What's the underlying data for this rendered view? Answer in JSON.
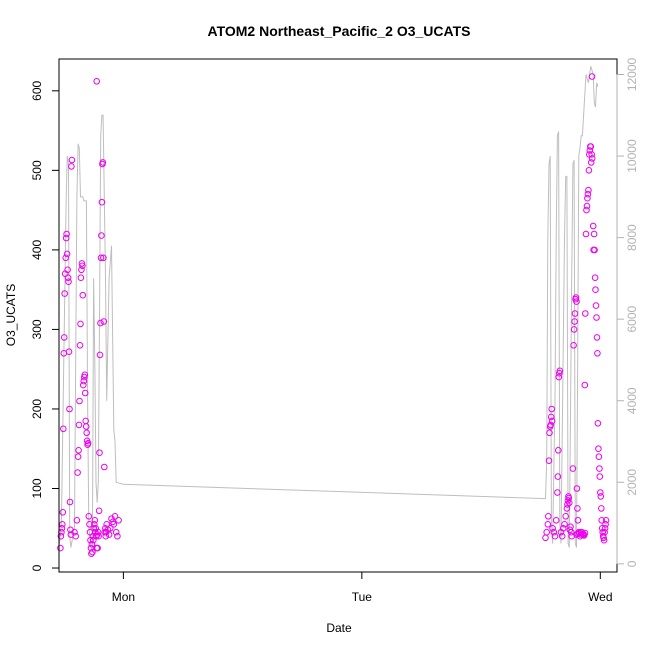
{
  "chart_data": {
    "type": "scatter",
    "title": "ATOM2 Northeast_Pacific_2 O3_UCATS",
    "xlabel": "Date",
    "ylabel": "O3_UCATS",
    "x_ticks": [
      "Mon",
      "Tue",
      "Wed"
    ],
    "y_ticks": [
      0,
      100,
      200,
      300,
      400,
      500,
      600
    ],
    "y2_ticks": [
      0,
      2000,
      4000,
      6000,
      8000,
      10000,
      12000
    ],
    "xlim": [
      -0.27,
      2.07
    ],
    "ylim": [
      -5,
      640
    ],
    "y2lim": [
      -200,
      12380
    ],
    "grid": false,
    "legend": "none",
    "colors": {
      "points": "#ee00ee",
      "altitude_line": "#bebebe",
      "right_axis": "#b3b3b3",
      "axes": "#000000"
    },
    "series": [
      {
        "role": "scatter",
        "axis": "left",
        "points": [
          [
            -0.264,
            25
          ],
          [
            -0.262,
            40
          ],
          [
            -0.26,
            45
          ],
          [
            -0.258,
            50
          ],
          [
            -0.256,
            55
          ],
          [
            -0.254,
            70
          ],
          [
            -0.252,
            175
          ],
          [
            -0.25,
            270
          ],
          [
            -0.248,
            290
          ],
          [
            -0.246,
            345
          ],
          [
            -0.244,
            370
          ],
          [
            -0.242,
            390
          ],
          [
            -0.24,
            415
          ],
          [
            -0.238,
            420
          ],
          [
            -0.236,
            395
          ],
          [
            -0.234,
            375
          ],
          [
            -0.232,
            365
          ],
          [
            -0.23,
            360
          ],
          [
            -0.228,
            272
          ],
          [
            -0.226,
            200
          ],
          [
            -0.224,
            83
          ],
          [
            -0.222,
            48
          ],
          [
            -0.22,
            42
          ],
          [
            -0.218,
            505
          ],
          [
            -0.216,
            513
          ],
          [
            -0.205,
            45
          ],
          [
            -0.2,
            40
          ],
          [
            -0.195,
            60
          ],
          [
            -0.192,
            120
          ],
          [
            -0.19,
            140
          ],
          [
            -0.188,
            148
          ],
          [
            -0.186,
            180
          ],
          [
            -0.184,
            210
          ],
          [
            -0.182,
            280
          ],
          [
            -0.18,
            307
          ],
          [
            -0.178,
            365
          ],
          [
            -0.176,
            375
          ],
          [
            -0.174,
            383
          ],
          [
            -0.172,
            380
          ],
          [
            -0.17,
            343
          ],
          [
            -0.168,
            230
          ],
          [
            -0.166,
            235
          ],
          [
            -0.164,
            240
          ],
          [
            -0.162,
            243
          ],
          [
            -0.16,
            220
          ],
          [
            -0.158,
            185
          ],
          [
            -0.156,
            178
          ],
          [
            -0.154,
            170
          ],
          [
            -0.152,
            160
          ],
          [
            -0.15,
            155
          ],
          [
            -0.148,
            157
          ],
          [
            -0.145,
            65
          ],
          [
            -0.142,
            55
          ],
          [
            -0.14,
            45
          ],
          [
            -0.138,
            35
          ],
          [
            -0.136,
            25
          ],
          [
            -0.134,
            18
          ],
          [
            -0.132,
            30
          ],
          [
            -0.13,
            20
          ],
          [
            -0.128,
            40
          ],
          [
            -0.126,
            35
          ],
          [
            -0.124,
            50
          ],
          [
            -0.122,
            55
          ],
          [
            -0.12,
            60
          ],
          [
            -0.118,
            45
          ],
          [
            -0.116,
            50
          ],
          [
            -0.114,
            40
          ],
          [
            -0.112,
            25
          ],
          [
            -0.11,
            42
          ],
          [
            -0.108,
            25
          ],
          [
            -0.106,
            45
          ],
          [
            -0.104,
            40
          ],
          [
            -0.102,
            72
          ],
          [
            -0.1,
            145
          ],
          [
            -0.098,
            268
          ],
          [
            -0.096,
            308
          ],
          [
            -0.094,
            390
          ],
          [
            -0.092,
            418
          ],
          [
            -0.09,
            460
          ],
          [
            -0.088,
            508
          ],
          [
            -0.086,
            510
          ],
          [
            -0.084,
            390
          ],
          [
            -0.082,
            310
          ],
          [
            -0.08,
            127
          ],
          [
            -0.078,
            45
          ],
          [
            -0.076,
            50
          ],
          [
            -0.074,
            40
          ],
          [
            -0.072,
            45
          ],
          [
            -0.112,
            612
          ],
          [
            -0.07,
            55
          ],
          [
            -0.065,
            48
          ],
          [
            -0.06,
            42
          ],
          [
            -0.055,
            50
          ],
          [
            -0.05,
            62
          ],
          [
            -0.045,
            58
          ],
          [
            -0.04,
            55
          ],
          [
            -0.035,
            65
          ],
          [
            -0.03,
            45
          ],
          [
            -0.025,
            40
          ],
          [
            -0.02,
            60
          ],
          [
            1.77,
            38
          ],
          [
            1.775,
            45
          ],
          [
            1.78,
            55
          ],
          [
            1.782,
            65
          ],
          [
            1.785,
            135
          ],
          [
            1.787,
            170
          ],
          [
            1.79,
            178
          ],
          [
            1.792,
            180
          ],
          [
            1.794,
            190
          ],
          [
            1.796,
            200
          ],
          [
            1.798,
            185
          ],
          [
            1.8,
            50
          ],
          [
            1.805,
            45
          ],
          [
            1.81,
            40
          ],
          [
            1.815,
            60
          ],
          [
            1.82,
            95
          ],
          [
            1.822,
            115
          ],
          [
            1.824,
            148
          ],
          [
            1.826,
            240
          ],
          [
            1.828,
            245
          ],
          [
            1.83,
            248
          ],
          [
            1.835,
            45
          ],
          [
            1.84,
            40
          ],
          [
            1.845,
            50
          ],
          [
            1.85,
            55
          ],
          [
            1.855,
            65
          ],
          [
            1.86,
            75
          ],
          [
            1.862,
            80
          ],
          [
            1.864,
            85
          ],
          [
            1.866,
            90
          ],
          [
            1.868,
            88
          ],
          [
            1.87,
            82
          ],
          [
            1.872,
            48
          ],
          [
            1.875,
            52
          ],
          [
            1.878,
            45
          ],
          [
            1.88,
            40
          ],
          [
            1.885,
            125
          ],
          [
            1.888,
            280
          ],
          [
            1.89,
            300
          ],
          [
            1.892,
            310
          ],
          [
            1.894,
            320
          ],
          [
            1.896,
            338
          ],
          [
            1.898,
            340
          ],
          [
            1.9,
            335
          ],
          [
            1.902,
            100
          ],
          [
            1.904,
            75
          ],
          [
            1.906,
            60
          ],
          [
            1.91,
            45
          ],
          [
            1.915,
            40
          ],
          [
            1.92,
            45
          ],
          [
            1.925,
            43
          ],
          [
            1.93,
            42
          ],
          [
            1.935,
            230
          ],
          [
            1.937,
            320
          ],
          [
            1.94,
            420
          ],
          [
            1.942,
            450
          ],
          [
            1.944,
            455
          ],
          [
            1.946,
            465
          ],
          [
            1.948,
            470
          ],
          [
            1.95,
            475
          ],
          [
            1.952,
            500
          ],
          [
            1.954,
            520
          ],
          [
            1.956,
            525
          ],
          [
            1.958,
            530
          ],
          [
            1.96,
            530
          ],
          [
            1.962,
            510
          ],
          [
            1.964,
            520
          ],
          [
            1.966,
            515
          ],
          [
            1.97,
            430
          ],
          [
            1.972,
            400
          ],
          [
            1.974,
            420
          ],
          [
            1.976,
            400
          ],
          [
            1.978,
            365
          ],
          [
            1.98,
            350
          ],
          [
            1.982,
            330
          ],
          [
            1.984,
            315
          ],
          [
            1.986,
            290
          ],
          [
            1.988,
            270
          ],
          [
            1.99,
            182
          ],
          [
            1.992,
            150
          ],
          [
            1.994,
            140
          ],
          [
            1.996,
            125
          ],
          [
            1.998,
            115
          ],
          [
            2.0,
            95
          ],
          [
            2.002,
            90
          ],
          [
            2.004,
            75
          ],
          [
            2.006,
            60
          ],
          [
            2.008,
            50
          ],
          [
            2.01,
            45
          ],
          [
            2.012,
            40
          ],
          [
            2.014,
            38
          ],
          [
            2.016,
            35
          ],
          [
            2.018,
            45
          ],
          [
            2.02,
            50
          ],
          [
            2.022,
            55
          ],
          [
            2.024,
            60
          ],
          [
            1.965,
            618
          ],
          [
            1.9,
            42
          ],
          [
            1.905,
            43
          ],
          [
            1.912,
            44
          ],
          [
            1.918,
            42
          ],
          [
            1.922,
            45
          ],
          [
            1.928,
            43
          ],
          [
            1.932,
            41
          ],
          [
            1.936,
            44
          ]
        ]
      },
      {
        "role": "line",
        "axis": "right",
        "points": [
          [
            -0.268,
            500
          ],
          [
            -0.26,
            1000
          ],
          [
            -0.25,
            5000
          ],
          [
            -0.24,
            9000
          ],
          [
            -0.235,
            10000
          ],
          [
            -0.23,
            9800
          ],
          [
            -0.225,
            700
          ],
          [
            -0.22,
            400
          ],
          [
            -0.205,
            900
          ],
          [
            -0.2,
            5000
          ],
          [
            -0.195,
            9000
          ],
          [
            -0.19,
            10300
          ],
          [
            -0.185,
            10200
          ],
          [
            -0.18,
            9000
          ],
          [
            -0.175,
            9000
          ],
          [
            -0.17,
            9000
          ],
          [
            -0.165,
            8900
          ],
          [
            -0.16,
            8900
          ],
          [
            -0.155,
            8900
          ],
          [
            -0.15,
            4000
          ],
          [
            -0.145,
            1000
          ],
          [
            -0.14,
            600
          ],
          [
            -0.135,
            400
          ],
          [
            -0.13,
            300
          ],
          [
            -0.125,
            7000
          ],
          [
            -0.12,
            5000
          ],
          [
            -0.115,
            2000
          ],
          [
            -0.11,
            1500
          ],
          [
            -0.105,
            2000
          ],
          [
            -0.1,
            6000
          ],
          [
            -0.095,
            10500
          ],
          [
            -0.09,
            11000
          ],
          [
            -0.085,
            11000
          ],
          [
            -0.08,
            9000
          ],
          [
            -0.075,
            7000
          ],
          [
            -0.07,
            4000
          ],
          [
            -0.06,
            7000
          ],
          [
            -0.05,
            7800
          ],
          [
            -0.04,
            3300
          ],
          [
            -0.035,
            3000
          ],
          [
            -0.03,
            2000
          ],
          [
            0.0,
            1950
          ],
          [
            1.77,
            1600
          ],
          [
            1.775,
            2500
          ],
          [
            1.78,
            8000
          ],
          [
            1.785,
            9800
          ],
          [
            1.79,
            10000
          ],
          [
            1.795,
            1000
          ],
          [
            1.8,
            500
          ],
          [
            1.81,
            4000
          ],
          [
            1.815,
            8000
          ],
          [
            1.82,
            10500
          ],
          [
            1.825,
            10600
          ],
          [
            1.83,
            1000
          ],
          [
            1.835,
            500
          ],
          [
            1.85,
            8000
          ],
          [
            1.855,
            9500
          ],
          [
            1.86,
            9500
          ],
          [
            1.865,
            500
          ],
          [
            1.87,
            400
          ],
          [
            1.88,
            7000
          ],
          [
            1.885,
            9800
          ],
          [
            1.89,
            9900
          ],
          [
            1.895,
            500
          ],
          [
            1.9,
            400
          ],
          [
            1.905,
            5000
          ],
          [
            1.91,
            10000
          ],
          [
            1.915,
            10200
          ],
          [
            1.92,
            10500
          ],
          [
            1.925,
            10500
          ],
          [
            1.93,
            11000
          ],
          [
            1.94,
            12000
          ],
          [
            1.95,
            11800
          ],
          [
            1.96,
            12200
          ],
          [
            1.965,
            12100
          ],
          [
            1.97,
            12000
          ],
          [
            1.975,
            11300
          ],
          [
            1.98,
            11200
          ],
          [
            1.985,
            11800
          ],
          [
            1.99,
            11700
          ]
        ]
      }
    ]
  }
}
